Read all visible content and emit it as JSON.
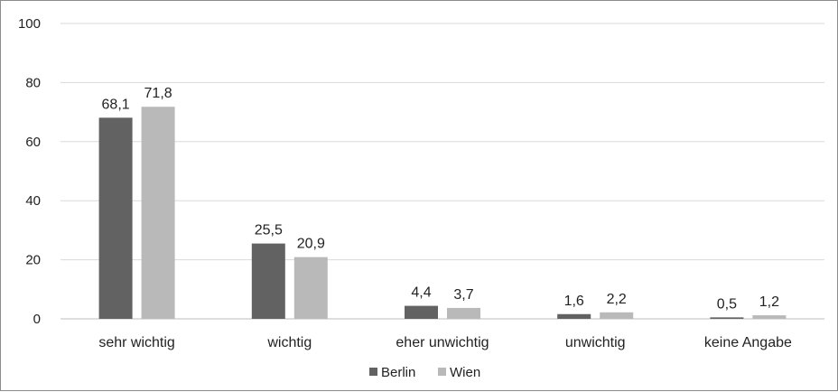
{
  "chart_data": {
    "type": "bar",
    "categories": [
      "sehr wichtig",
      "wichtig",
      "eher unwichtig",
      "unwichtig",
      "keine Angabe"
    ],
    "series": [
      {
        "name": "Berlin",
        "values": [
          68.1,
          25.5,
          4.4,
          1.6,
          0.5
        ],
        "labels": [
          "68,1",
          "25,5",
          "4,4",
          "1,6",
          "0,5"
        ],
        "color": "#626262"
      },
      {
        "name": "Wien",
        "values": [
          71.8,
          20.9,
          3.7,
          2.2,
          1.2
        ],
        "labels": [
          "71,8",
          "20,9",
          "3,7",
          "2,2",
          "1,2"
        ],
        "color": "#b9b9b9"
      }
    ],
    "yticks": [
      "0",
      "20",
      "40",
      "60",
      "80",
      "100"
    ],
    "ylim": [
      0,
      100
    ],
    "grid": true,
    "legend_position": "bottom-center",
    "title": "",
    "xlabel": "",
    "ylabel": ""
  }
}
